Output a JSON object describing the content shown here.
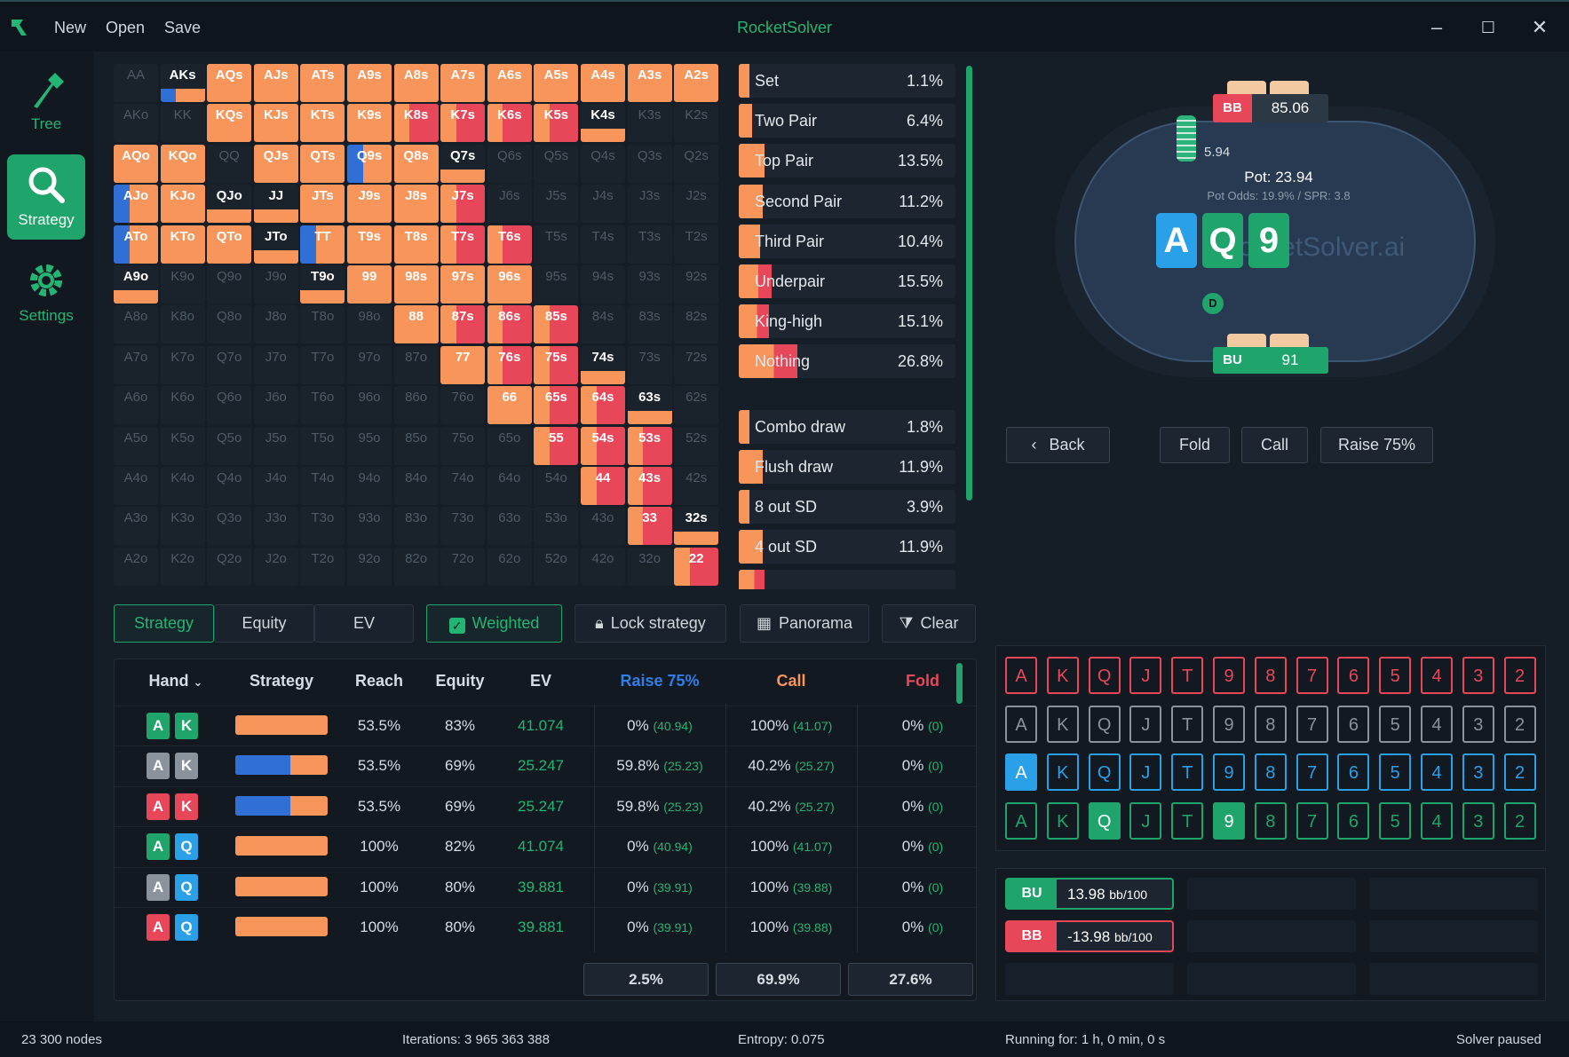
{
  "app": {
    "title": "RocketSolver",
    "menu": [
      "New",
      "Open",
      "Save"
    ]
  },
  "sidebar": [
    {
      "label": "Tree",
      "icon": "hammer-icon",
      "active": false
    },
    {
      "label": "Strategy",
      "icon": "magnifier-icon",
      "active": true
    },
    {
      "label": "Settings",
      "icon": "gear-icon",
      "active": false
    }
  ],
  "colors": {
    "raise": "#f7955a",
    "call": "#e8475a",
    "fold": "#2f6fd6",
    "accent": "#1fa56b"
  },
  "matrix": [
    [
      "AA",
      "AKs",
      "AQs",
      "AJs",
      "ATs",
      "A9s",
      "A8s",
      "A7s",
      "A6s",
      "A5s",
      "A4s",
      "A3s",
      "A2s"
    ],
    [
      "AKo",
      "KK",
      "KQs",
      "KJs",
      "KTs",
      "K9s",
      "K8s",
      "K7s",
      "K6s",
      "K5s",
      "K4s",
      "K3s",
      "K2s"
    ],
    [
      "AQo",
      "KQo",
      "QQ",
      "QJs",
      "QTs",
      "Q9s",
      "Q8s",
      "Q7s",
      "Q6s",
      "Q5s",
      "Q4s",
      "Q3s",
      "Q2s"
    ],
    [
      "AJo",
      "KJo",
      "QJo",
      "JJ",
      "JTs",
      "J9s",
      "J8s",
      "J7s",
      "J6s",
      "J5s",
      "J4s",
      "J3s",
      "J2s"
    ],
    [
      "ATo",
      "KTo",
      "QTo",
      "JTo",
      "TT",
      "T9s",
      "T8s",
      "T7s",
      "T6s",
      "T5s",
      "T4s",
      "T3s",
      "T2s"
    ],
    [
      "A9o",
      "K9o",
      "Q9o",
      "J9o",
      "T9o",
      "99",
      "98s",
      "97s",
      "96s",
      "95s",
      "94s",
      "93s",
      "92s"
    ],
    [
      "A8o",
      "K8o",
      "Q8o",
      "J8o",
      "T8o",
      "98o",
      "88",
      "87s",
      "86s",
      "85s",
      "84s",
      "83s",
      "82s"
    ],
    [
      "A7o",
      "K7o",
      "Q7o",
      "J7o",
      "T7o",
      "97o",
      "87o",
      "77",
      "76s",
      "75s",
      "74s",
      "73s",
      "72s"
    ],
    [
      "A6o",
      "K6o",
      "Q6o",
      "J6o",
      "T6o",
      "96o",
      "86o",
      "76o",
      "66",
      "65s",
      "64s",
      "63s",
      "62s"
    ],
    [
      "A5o",
      "K5o",
      "Q5o",
      "J5o",
      "T5o",
      "95o",
      "85o",
      "75o",
      "65o",
      "55",
      "54s",
      "53s",
      "52s"
    ],
    [
      "A4o",
      "K4o",
      "Q4o",
      "J4o",
      "T4o",
      "94o",
      "84o",
      "74o",
      "64o",
      "54o",
      "44",
      "43s",
      "42s"
    ],
    [
      "A3o",
      "K3o",
      "Q3o",
      "J3o",
      "T3o",
      "93o",
      "83o",
      "73o",
      "63o",
      "53o",
      "43o",
      "33",
      "32s"
    ],
    [
      "A2o",
      "K2o",
      "Q2o",
      "J2o",
      "T2o",
      "92o",
      "82o",
      "72o",
      "62o",
      "52o",
      "42o",
      "32o",
      "22"
    ]
  ],
  "categories": [
    {
      "name": "Set",
      "pct": "1.1%",
      "fill": 0.05,
      "color": "#f7955a"
    },
    {
      "name": "Two Pair",
      "pct": "6.4%",
      "fill": 0.06,
      "color": "#f7955a"
    },
    {
      "name": "Top Pair",
      "pct": "13.5%",
      "fill": 0.12,
      "color": "#f7955a"
    },
    {
      "name": "Second Pair",
      "pct": "11.2%",
      "fill": 0.11,
      "color": "#f7955a"
    },
    {
      "name": "Third Pair",
      "pct": "10.4%",
      "fill": 0.1,
      "color": "#f7955a"
    },
    {
      "name": "Underpair",
      "pct": "15.5%",
      "fill": 0.15,
      "color": "#e8475a"
    },
    {
      "name": "King-high",
      "pct": "15.1%",
      "fill": 0.14,
      "color": "#e8475a"
    },
    {
      "name": "Nothing",
      "pct": "26.8%",
      "fill": 0.27,
      "color": "#e8475a"
    },
    {
      "name": "Combo draw",
      "pct": "1.8%",
      "fill": 0.04,
      "color": "#f7955a"
    },
    {
      "name": "Flush draw",
      "pct": "11.9%",
      "fill": 0.11,
      "color": "#f7955a"
    },
    {
      "name": "8 out SD",
      "pct": "3.9%",
      "fill": 0.04,
      "color": "#f7955a"
    },
    {
      "name": "4 out SD",
      "pct": "11.9%",
      "fill": 0.11,
      "color": "#f7955a"
    },
    {
      "name": "",
      "pct": "",
      "fill": 0.12,
      "color": "#e8475a"
    }
  ],
  "tabs": [
    "Strategy",
    "Equity",
    "EV"
  ],
  "toolbar": {
    "weighted": "Weighted",
    "lock": "Lock strategy",
    "panorama": "Panorama",
    "clear": "Clear"
  },
  "table": {
    "headers": {
      "hand": "Hand",
      "strategy": "Strategy",
      "reach": "Reach",
      "equity": "Equity",
      "ev": "EV",
      "raise": "Raise 75%",
      "call": "Call",
      "fold": "Fold"
    },
    "rows": [
      {
        "c1": "A",
        "c1col": "#1fa56b",
        "c2": "K",
        "c2col": "#1fa56b",
        "fold": 0,
        "reach": "53.5%",
        "equity": "83%",
        "ev": "41.074",
        "r": "0%",
        "rv": "(40.94)",
        "c": "100%",
        "cv": "(41.07)",
        "f": "0%",
        "fv": "(0)"
      },
      {
        "c1": "A",
        "c1col": "#8a939c",
        "c2": "K",
        "c2col": "#8a939c",
        "fold": 0.6,
        "reach": "53.5%",
        "equity": "69%",
        "ev": "25.247",
        "r": "59.8%",
        "rv": "(25.23)",
        "c": "40.2%",
        "cv": "(25.27)",
        "f": "0%",
        "fv": "(0)"
      },
      {
        "c1": "A",
        "c1col": "#e8475a",
        "c2": "K",
        "c2col": "#e8475a",
        "fold": 0.6,
        "reach": "53.5%",
        "equity": "69%",
        "ev": "25.247",
        "r": "59.8%",
        "rv": "(25.23)",
        "c": "40.2%",
        "cv": "(25.27)",
        "f": "0%",
        "fv": "(0)"
      },
      {
        "c1": "A",
        "c1col": "#1fa56b",
        "c2": "Q",
        "c2col": "#2aa0e8",
        "fold": 0,
        "reach": "100%",
        "equity": "82%",
        "ev": "41.074",
        "r": "0%",
        "rv": "(40.94)",
        "c": "100%",
        "cv": "(41.07)",
        "f": "0%",
        "fv": "(0)"
      },
      {
        "c1": "A",
        "c1col": "#8a939c",
        "c2": "Q",
        "c2col": "#2aa0e8",
        "fold": 0,
        "reach": "100%",
        "equity": "80%",
        "ev": "39.881",
        "r": "0%",
        "rv": "(39.91)",
        "c": "100%",
        "cv": "(39.88)",
        "f": "0%",
        "fv": "(0)"
      },
      {
        "c1": "A",
        "c1col": "#e8475a",
        "c2": "Q",
        "c2col": "#2aa0e8",
        "fold": 0,
        "reach": "100%",
        "equity": "80%",
        "ev": "39.881",
        "r": "0%",
        "rv": "(39.91)",
        "c": "100%",
        "cv": "(39.88)",
        "f": "0%",
        "fv": "(0)"
      }
    ],
    "totals": {
      "raise": "2.5%",
      "call": "69.9%",
      "fold": "27.6%"
    }
  },
  "poker_table": {
    "bb_label": "BB",
    "bb_stack": "85.06",
    "bu_label": "BU",
    "bu_stack": "91",
    "chips": "5.94",
    "pot": "Pot: 23.94",
    "pot_info": "Pot Odds: 19.9% / SPR: 3.8",
    "board": [
      {
        "rank": "A",
        "color": "#2aa0e8"
      },
      {
        "rank": "Q",
        "color": "#1fa56b"
      },
      {
        "rank": "9",
        "color": "#1fa56b"
      }
    ],
    "watermark": "RocketSolver.ai",
    "dealer": "D"
  },
  "actions": {
    "back": "Back",
    "fold": "Fold",
    "call": "Call",
    "raise": "Raise 75%"
  },
  "picker": {
    "ranks": [
      "A",
      "K",
      "Q",
      "J",
      "T",
      "9",
      "8",
      "7",
      "6",
      "5",
      "4",
      "3",
      "2"
    ],
    "rows": [
      {
        "color": "#e8475a",
        "selected": []
      },
      {
        "color": "#8a939c",
        "selected": []
      },
      {
        "color": "#2aa0e8",
        "selected": [
          0
        ]
      },
      {
        "color": "#1fa56b",
        "selected": [
          2,
          5
        ]
      }
    ]
  },
  "ev_panel": [
    {
      "label": "BU",
      "value": "13.98",
      "unit": "bb/100",
      "color": "#1fa56b"
    },
    {
      "label": "BB",
      "value": "-13.98",
      "unit": "bb/100",
      "color": "#e8475a"
    }
  ],
  "status": {
    "nodes": "23 300 nodes",
    "iterations": "Iterations: 3 965 363 388",
    "entropy": "Entropy: 0.075",
    "running": "Running for: 1 h, 0 min, 0 s",
    "state": "Solver paused"
  }
}
